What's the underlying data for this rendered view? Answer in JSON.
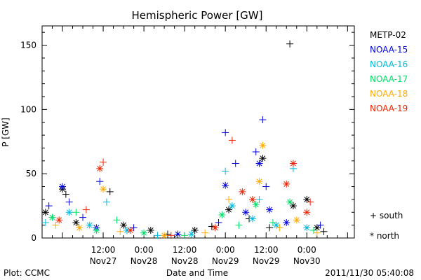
{
  "chart_data": {
    "type": "scatter",
    "title": "Hemispheric Power [GW]",
    "xlabel": "Date and Time",
    "ylabel": "P [GW]",
    "ylim": [
      0,
      165
    ],
    "yticks": [
      0,
      50,
      100,
      150
    ],
    "xlim": [
      "2011-11-26T18:00",
      "2011-11-30T14:00"
    ],
    "xticks": [
      {
        "time": "2011-11-27T12:00",
        "time_label": "12:00",
        "date_label": "Nov27"
      },
      {
        "time": "2011-11-28T00:00",
        "time_label": "0:00",
        "date_label": "Nov28"
      },
      {
        "time": "2011-11-28T12:00",
        "time_label": "12:00",
        "date_label": "Nov28"
      },
      {
        "time": "2011-11-29T00:00",
        "time_label": "0:00",
        "date_label": "Nov29"
      },
      {
        "time": "2011-11-29T12:00",
        "time_label": "12:00",
        "date_label": "Nov29"
      },
      {
        "time": "2011-11-30T00:00",
        "time_label": "0:00",
        "date_label": "Nov30"
      }
    ],
    "marker_legend": [
      {
        "symbol": "+",
        "label": "south"
      },
      {
        "symbol": "*",
        "label": "north"
      }
    ],
    "series": [
      {
        "name": "METP-02",
        "color": "#000000",
        "points": [
          {
            "t": "2011-11-26T19:00",
            "p": 20,
            "m": "*"
          },
          {
            "t": "2011-11-27T00:00",
            "p": 38,
            "m": "*"
          },
          {
            "t": "2011-11-27T01:00",
            "p": 34,
            "m": "+"
          },
          {
            "t": "2011-11-27T04:00",
            "p": 12,
            "m": "*"
          },
          {
            "t": "2011-11-27T14:00",
            "p": 36,
            "m": "+"
          },
          {
            "t": "2011-11-27T18:00",
            "p": 10,
            "m": "*"
          },
          {
            "t": "2011-11-28T02:00",
            "p": 6,
            "m": "*"
          },
          {
            "t": "2011-11-28T07:00",
            "p": 3,
            "m": "+"
          },
          {
            "t": "2011-11-28T15:00",
            "p": 6,
            "m": "*"
          },
          {
            "t": "2011-11-28T20:00",
            "p": 9,
            "m": "+"
          },
          {
            "t": "2011-11-29T01:00",
            "p": 22,
            "m": "*"
          },
          {
            "t": "2011-11-29T07:00",
            "p": 15,
            "m": "+"
          },
          {
            "t": "2011-11-29T11:00",
            "p": 62,
            "m": "*"
          },
          {
            "t": "2011-11-29T13:00",
            "p": 8,
            "m": "+"
          },
          {
            "t": "2011-11-29T19:00",
            "p": 151,
            "m": "+"
          },
          {
            "t": "2011-11-29T20:00",
            "p": 25,
            "m": "*"
          },
          {
            "t": "2011-11-30T00:00",
            "p": 30,
            "m": "*"
          },
          {
            "t": "2011-11-30T03:00",
            "p": 8,
            "m": "*"
          },
          {
            "t": "2011-11-30T05:00",
            "p": 5,
            "m": "+"
          }
        ]
      },
      {
        "name": "NOAA-15",
        "color": "#0000dd",
        "points": [
          {
            "t": "2011-11-26T20:00",
            "p": 25,
            "m": "+"
          },
          {
            "t": "2011-11-27T00:00",
            "p": 40,
            "m": "*"
          },
          {
            "t": "2011-11-27T02:00",
            "p": 28,
            "m": "+"
          },
          {
            "t": "2011-11-27T06:00",
            "p": 16,
            "m": "+"
          },
          {
            "t": "2011-11-27T10:00",
            "p": 8,
            "m": "*"
          },
          {
            "t": "2011-11-27T11:00",
            "p": 44,
            "m": "+"
          },
          {
            "t": "2011-11-27T21:00",
            "p": 8,
            "m": "+"
          },
          {
            "t": "2011-11-28T10:00",
            "p": 3,
            "m": "*"
          },
          {
            "t": "2011-11-28T22:00",
            "p": 12,
            "m": "+"
          },
          {
            "t": "2011-11-29T00:00",
            "p": 41,
            "m": "*"
          },
          {
            "t": "2011-11-29T00:00",
            "p": 82,
            "m": "+"
          },
          {
            "t": "2011-11-29T03:00",
            "p": 58,
            "m": "+"
          },
          {
            "t": "2011-11-29T06:00",
            "p": 20,
            "m": "*"
          },
          {
            "t": "2011-11-29T09:00",
            "p": 67,
            "m": "+"
          },
          {
            "t": "2011-11-29T10:00",
            "p": 58,
            "m": "*"
          },
          {
            "t": "2011-11-29T11:00",
            "p": 92,
            "m": "+"
          },
          {
            "t": "2011-11-29T12:00",
            "p": 40,
            "m": "+"
          },
          {
            "t": "2011-11-29T13:00",
            "p": 22,
            "m": "*"
          },
          {
            "t": "2011-11-29T18:00",
            "p": 12,
            "m": "*"
          },
          {
            "t": "2011-11-30T04:00",
            "p": 10,
            "m": "+"
          }
        ]
      },
      {
        "name": "NOAA-16",
        "color": "#00bbdd",
        "points": [
          {
            "t": "2011-11-26T19:00",
            "p": 12,
            "m": "+"
          },
          {
            "t": "2011-11-27T02:00",
            "p": 20,
            "m": "*"
          },
          {
            "t": "2011-11-27T08:00",
            "p": 10,
            "m": "*"
          },
          {
            "t": "2011-11-27T13:00",
            "p": 28,
            "m": "+"
          },
          {
            "t": "2011-11-27T19:00",
            "p": 6,
            "m": "*"
          },
          {
            "t": "2011-11-28T04:00",
            "p": 2,
            "m": "+"
          },
          {
            "t": "2011-11-28T14:00",
            "p": 3,
            "m": "*"
          },
          {
            "t": "2011-11-29T00:00",
            "p": 52,
            "m": "+"
          },
          {
            "t": "2011-11-29T02:00",
            "p": 25,
            "m": "*"
          },
          {
            "t": "2011-11-29T08:00",
            "p": 15,
            "m": "*"
          },
          {
            "t": "2011-11-29T10:00",
            "p": 30,
            "m": "+"
          },
          {
            "t": "2011-11-29T15:00",
            "p": 10,
            "m": "*"
          },
          {
            "t": "2011-11-29T20:00",
            "p": 54,
            "m": "+"
          },
          {
            "t": "2011-11-30T00:00",
            "p": 8,
            "m": "*"
          }
        ]
      },
      {
        "name": "NOAA-17",
        "color": "#00dd66",
        "points": [
          {
            "t": "2011-11-26T21:00",
            "p": 16,
            "m": "*"
          },
          {
            "t": "2011-11-27T04:00",
            "p": 20,
            "m": "+"
          },
          {
            "t": "2011-11-27T10:00",
            "p": 6,
            "m": "*"
          },
          {
            "t": "2011-11-27T16:00",
            "p": 14,
            "m": "+"
          },
          {
            "t": "2011-11-28T00:00",
            "p": 4,
            "m": "*"
          },
          {
            "t": "2011-11-28T12:00",
            "p": 2,
            "m": "+"
          },
          {
            "t": "2011-11-28T23:00",
            "p": 18,
            "m": "*"
          },
          {
            "t": "2011-11-29T04:00",
            "p": 10,
            "m": "+"
          },
          {
            "t": "2011-11-29T09:00",
            "p": 26,
            "m": "*"
          },
          {
            "t": "2011-11-29T14:00",
            "p": 12,
            "m": "+"
          },
          {
            "t": "2011-11-29T19:00",
            "p": 28,
            "m": "*"
          },
          {
            "t": "2011-11-30T02:00",
            "p": 6,
            "m": "+"
          }
        ]
      },
      {
        "name": "NOAA-18",
        "color": "#ffaa00",
        "points": [
          {
            "t": "2011-11-26T22:00",
            "p": 10,
            "m": "+"
          },
          {
            "t": "2011-11-27T05:00",
            "p": 8,
            "m": "*"
          },
          {
            "t": "2011-11-27T12:00",
            "p": 38,
            "m": "*"
          },
          {
            "t": "2011-11-27T17:00",
            "p": 5,
            "m": "+"
          },
          {
            "t": "2011-11-28T06:00",
            "p": 2,
            "m": "*"
          },
          {
            "t": "2011-11-28T18:00",
            "p": 4,
            "m": "+"
          },
          {
            "t": "2011-11-29T01:00",
            "p": 30,
            "m": "+"
          },
          {
            "t": "2011-11-29T10:00",
            "p": 44,
            "m": "*"
          },
          {
            "t": "2011-11-29T11:00",
            "p": 72,
            "m": "*"
          },
          {
            "t": "2011-11-29T16:00",
            "p": 8,
            "m": "+"
          },
          {
            "t": "2011-11-29T21:00",
            "p": 14,
            "m": "*"
          },
          {
            "t": "2011-11-30T03:00",
            "p": 4,
            "m": "+"
          }
        ]
      },
      {
        "name": "NOAA-19",
        "color": "#ee2200",
        "points": [
          {
            "t": "2011-11-26T23:00",
            "p": 14,
            "m": "*"
          },
          {
            "t": "2011-11-27T07:00",
            "p": 22,
            "m": "+"
          },
          {
            "t": "2011-11-27T11:00",
            "p": 54,
            "m": "*"
          },
          {
            "t": "2011-11-27T12:00",
            "p": 59,
            "m": "+"
          },
          {
            "t": "2011-11-27T20:00",
            "p": 6,
            "m": "*"
          },
          {
            "t": "2011-11-28T08:00",
            "p": 2,
            "m": "+"
          },
          {
            "t": "2011-11-28T21:00",
            "p": 8,
            "m": "*"
          },
          {
            "t": "2011-11-29T02:00",
            "p": 76,
            "m": "+"
          },
          {
            "t": "2011-11-29T05:00",
            "p": 36,
            "m": "*"
          },
          {
            "t": "2011-11-29T08:00",
            "p": 30,
            "m": "*"
          },
          {
            "t": "2011-11-29T18:00",
            "p": 42,
            "m": "*"
          },
          {
            "t": "2011-11-29T20:00",
            "p": 58,
            "m": "*"
          },
          {
            "t": "2011-11-30T00:00",
            "p": 20,
            "m": "*"
          },
          {
            "t": "2011-11-30T01:00",
            "p": 28,
            "m": "+"
          }
        ]
      }
    ]
  },
  "footer": {
    "left": "Plot: CCMC",
    "right": "2011/11/30 05:40:08"
  }
}
